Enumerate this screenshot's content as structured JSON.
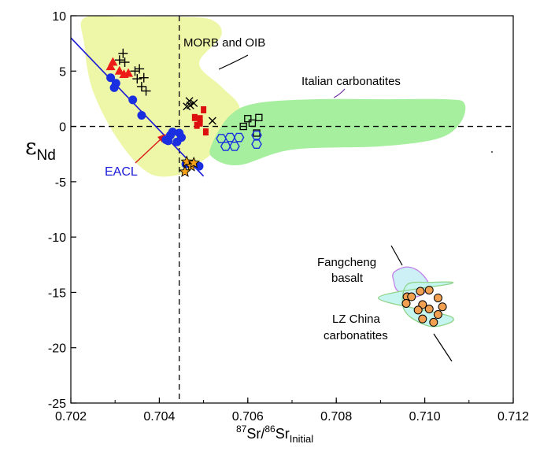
{
  "chart_data": {
    "type": "scatter",
    "x_axis": {
      "label_sup1": "87",
      "label_part1": "Sr/",
      "label_sup2": "86",
      "label_part2": "Sr",
      "label_sub": "Initial",
      "range": [
        0.702,
        0.712
      ],
      "ticks": [
        "0.702",
        "0.704",
        "0.706",
        "0.708",
        "0.710",
        "0.712"
      ]
    },
    "y_axis": {
      "label_main": "ε",
      "label_sub": "Nd",
      "range": [
        -25,
        10
      ],
      "ticks": [
        "10",
        "5",
        "0",
        "-5",
        "-10",
        "-15",
        "-20",
        "-25"
      ]
    },
    "reference_lines": {
      "x": 0.70445,
      "y": 0
    },
    "annotations": {
      "morb": "MORB and OIB",
      "italian": "Italian carbonatites",
      "eacl": "EACL",
      "fangcheng_1": "Fangcheng",
      "fangcheng_2": "basalt",
      "lz_1": "LZ China",
      "lz_2": "carbonatites"
    },
    "eacl_line": {
      "x": [
        0.702,
        0.705
      ],
      "y": [
        8,
        -4.5
      ]
    },
    "fields": [
      {
        "id": "morb-oib",
        "color": "#eef7a8",
        "points": [
          [
            0.7023,
            9.8
          ],
          [
            0.7032,
            9.9
          ],
          [
            0.7045,
            9.9
          ],
          [
            0.7052,
            9.6
          ],
          [
            0.7054,
            8.2
          ],
          [
            0.7049,
            5.7
          ],
          [
            0.7054,
            3.6
          ],
          [
            0.7058,
            1.9
          ],
          [
            0.70575,
            0
          ],
          [
            0.7053,
            -2.1
          ],
          [
            0.7048,
            -3.6
          ],
          [
            0.70455,
            -4.3
          ],
          [
            0.7038,
            -4.3
          ],
          [
            0.7031,
            -1.4
          ],
          [
            0.7025,
            3.2
          ],
          [
            0.7023,
            7.5
          ]
        ]
      },
      {
        "id": "italian-carbonatites",
        "color": "#a6ef9e",
        "points": [
          [
            0.7052,
            -1.5
          ],
          [
            0.7056,
            1.0
          ],
          [
            0.7062,
            2.1
          ],
          [
            0.7075,
            2.45
          ],
          [
            0.709,
            2.45
          ],
          [
            0.7105,
            2.45
          ],
          [
            0.7109,
            2.05
          ],
          [
            0.7108,
            0.3
          ],
          [
            0.7103,
            -1.1
          ],
          [
            0.709,
            -1.8
          ],
          [
            0.707,
            -2.1
          ],
          [
            0.7058,
            -3.5
          ],
          [
            0.7052,
            -2.8
          ]
        ]
      },
      {
        "id": "fangcheng-basalt",
        "color": "#cdf0f6",
        "stroke": "#c080e8",
        "points": [
          [
            0.7093,
            -13.2
          ],
          [
            0.7096,
            -12.7
          ],
          [
            0.7099,
            -13.2
          ],
          [
            0.7101,
            -14.5
          ],
          [
            0.7098,
            -15.4
          ],
          [
            0.7094,
            -14.9
          ],
          [
            0.7093,
            -14.0
          ]
        ]
      },
      {
        "id": "lz-china-carbonatites",
        "color": "#c6f5ef",
        "stroke": "#8fd48a",
        "points": [
          [
            0.7096,
            -14.3
          ],
          [
            0.7101,
            -14.1
          ],
          [
            0.7106,
            -14.2
          ],
          [
            0.70895,
            -15.5
          ],
          [
            0.7106,
            -17.2
          ],
          [
            0.7102,
            -18.1
          ],
          [
            0.7097,
            -17.3
          ],
          [
            0.7095,
            -16.1
          ]
        ]
      }
    ],
    "series": [
      {
        "marker": "plus",
        "color": "#000000",
        "points": [
          [
            0.7031,
            6.0
          ],
          [
            0.70318,
            6.6
          ],
          [
            0.70322,
            5.8
          ],
          [
            0.70345,
            5.0
          ],
          [
            0.70355,
            5.2
          ],
          [
            0.7035,
            4.3
          ],
          [
            0.7036,
            3.6
          ],
          [
            0.70365,
            4.4
          ],
          [
            0.7037,
            3.2
          ]
        ]
      },
      {
        "marker": "triangle",
        "color": "#ee1c18",
        "points": [
          [
            0.70295,
            5.8
          ],
          [
            0.7031,
            5.0
          ],
          [
            0.7032,
            4.7
          ],
          [
            0.7033,
            4.8
          ],
          [
            0.7029,
            5.4
          ]
        ]
      },
      {
        "marker": "circle",
        "color": "#1a2fe0",
        "points": [
          [
            0.7029,
            4.4
          ],
          [
            0.70298,
            3.5
          ],
          [
            0.70302,
            3.9
          ],
          [
            0.7034,
            2.4
          ],
          [
            0.7036,
            1.0
          ],
          [
            0.70415,
            -1.2
          ],
          [
            0.7042,
            -1.3
          ],
          [
            0.7043,
            -0.5
          ],
          [
            0.70425,
            -0.8
          ],
          [
            0.7044,
            -1.4
          ],
          [
            0.7045,
            -1.0
          ],
          [
            0.70445,
            -0.6
          ],
          [
            0.7046,
            -3.4
          ],
          [
            0.7049,
            -3.6
          ]
        ]
      },
      {
        "marker": "star",
        "color": "#f4a018",
        "points": [
          [
            0.70462,
            -3.2
          ],
          [
            0.70472,
            -3.6
          ],
          [
            0.70458,
            -4.1
          ],
          [
            0.70478,
            -3.3
          ]
        ]
      },
      {
        "marker": "cross",
        "color": "#000000",
        "points": [
          [
            0.70462,
            1.8
          ],
          [
            0.70468,
            2.3
          ],
          [
            0.7047,
            1.9
          ],
          [
            0.70478,
            2.1
          ],
          [
            0.7052,
            0.5
          ]
        ]
      },
      {
        "marker": "square-filled",
        "color": "#dd1010",
        "points": [
          [
            0.7048,
            0.8
          ],
          [
            0.70492,
            0.7
          ],
          [
            0.705,
            1.5
          ],
          [
            0.70485,
            0.1
          ],
          [
            0.70505,
            -0.5
          ],
          [
            0.70492,
            0.3
          ]
        ]
      },
      {
        "marker": "square-open",
        "color": "#000000",
        "points": [
          [
            0.7059,
            0
          ],
          [
            0.706,
            0.7
          ],
          [
            0.7061,
            0.3
          ],
          [
            0.7062,
            -0.6
          ],
          [
            0.70625,
            0.8
          ]
        ]
      },
      {
        "marker": "hexagon",
        "color": "#1a2fe0",
        "points": [
          [
            0.7054,
            -1.1
          ],
          [
            0.7056,
            -1.0
          ],
          [
            0.7058,
            -1.0
          ],
          [
            0.7055,
            -1.8
          ],
          [
            0.7057,
            -1.8
          ],
          [
            0.7062,
            -1.6
          ],
          [
            0.7062,
            -0.8
          ]
        ]
      },
      {
        "marker": "circle-orange",
        "color": "#f0a050",
        "points": [
          [
            0.7096,
            -15.4
          ],
          [
            0.70958,
            -16.0
          ],
          [
            0.7097,
            -15.4
          ],
          [
            0.7099,
            -14.9
          ],
          [
            0.7101,
            -14.8
          ],
          [
            0.7103,
            -15.5
          ],
          [
            0.70995,
            -16.1
          ],
          [
            0.70985,
            -16.6
          ],
          [
            0.7101,
            -16.5
          ],
          [
            0.7104,
            -16.3
          ],
          [
            0.70995,
            -17.4
          ],
          [
            0.7103,
            -17.0
          ],
          [
            0.7102,
            -17.7
          ]
        ]
      }
    ]
  }
}
